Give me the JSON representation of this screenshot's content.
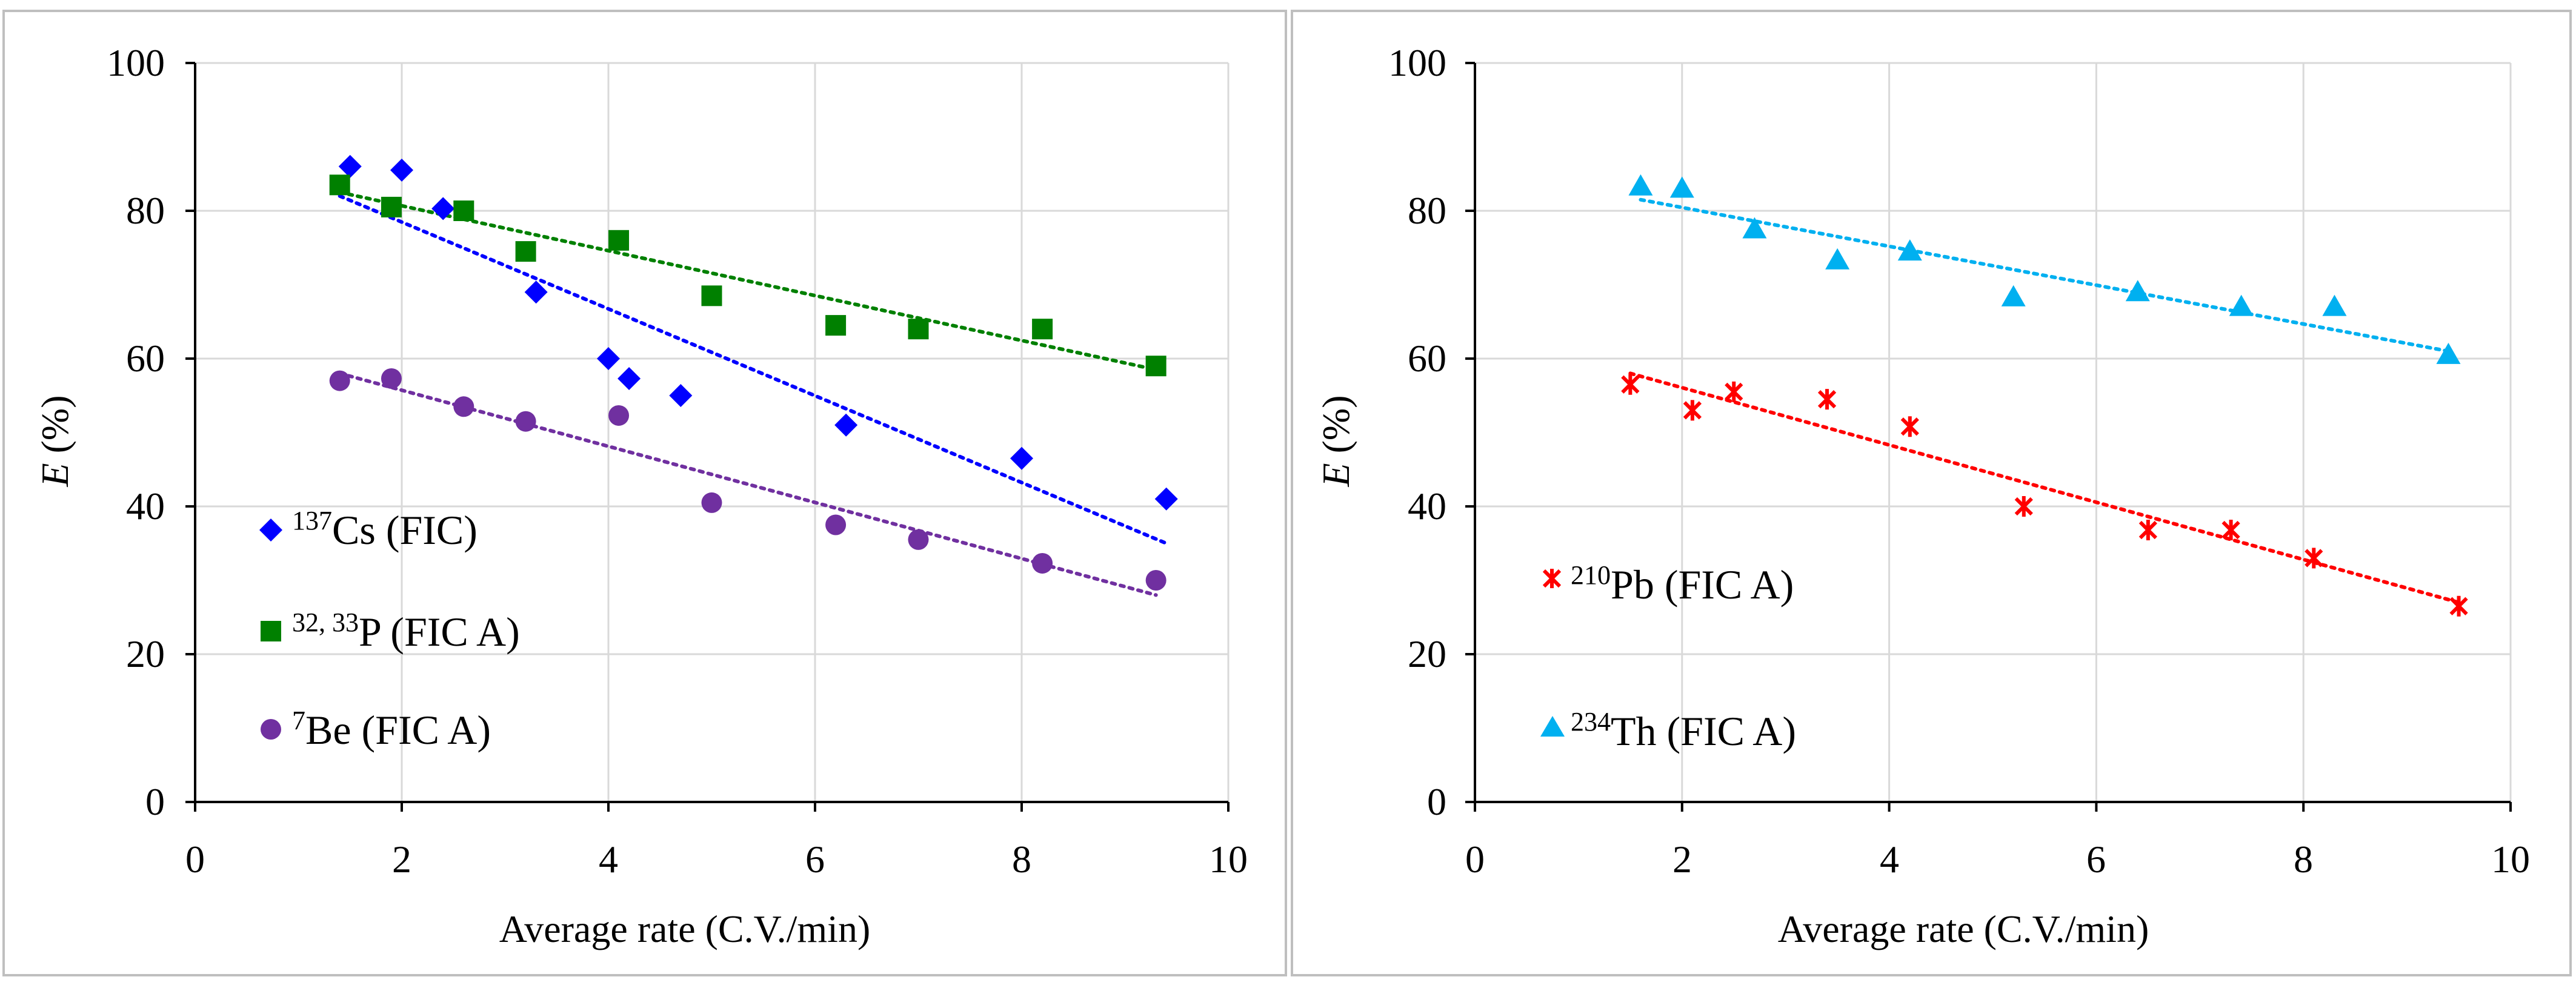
{
  "colors": {
    "cs": "#0000FF",
    "p": "#008000",
    "be": "#7030A0",
    "pb": "#FF0000",
    "th": "#00B0F0",
    "grid": "#D9D9D9",
    "axis": "#000000",
    "frame": "#BFBFBF"
  },
  "chart_data": [
    {
      "type": "scatter",
      "title": "",
      "xlabel": "Average rate (C.V./min)",
      "ylabel": {
        "symbol": "E",
        "rest": " (%)"
      },
      "xlim": [
        0,
        10
      ],
      "ylim": [
        0,
        100
      ],
      "xticks": [
        "0",
        "2",
        "4",
        "6",
        "8",
        "10"
      ],
      "yticks": [
        "0",
        "20",
        "40",
        "60",
        "80",
        "100"
      ],
      "grid": true,
      "legend_position": "left-bottom",
      "series": [
        {
          "key": "cs",
          "marker": "diamond",
          "legend": {
            "sup": "137",
            "name": "Cs (FIC)"
          },
          "x": [
            1.5,
            2.0,
            2.4,
            3.3,
            4.0,
            4.2,
            4.7,
            6.3,
            8.0,
            9.4
          ],
          "y": [
            86,
            85.5,
            80.3,
            69,
            60,
            57.3,
            55,
            51,
            46.5,
            41
          ],
          "trend": {
            "x": [
              1.4,
              9.4
            ],
            "y": [
              82,
              35
            ]
          }
        },
        {
          "key": "p",
          "marker": "square",
          "legend": {
            "sup": "32, 33",
            "name": "P (FIC A)"
          },
          "x": [
            1.4,
            1.9,
            2.6,
            3.2,
            4.1,
            5.0,
            6.2,
            7.0,
            8.2,
            9.3
          ],
          "y": [
            83.5,
            80.5,
            80,
            74.5,
            76,
            68.5,
            64.5,
            64,
            64,
            59
          ],
          "trend": {
            "x": [
              1.4,
              9.3
            ],
            "y": [
              82.5,
              58.5
            ]
          }
        },
        {
          "key": "be",
          "marker": "circle",
          "legend": {
            "sup": "7",
            "name": "Be (FIC A)"
          },
          "x": [
            1.4,
            1.9,
            2.6,
            3.2,
            4.1,
            5.0,
            6.2,
            7.0,
            8.2,
            9.3
          ],
          "y": [
            57,
            57.3,
            53.5,
            51.5,
            52.3,
            40.5,
            37.5,
            35.5,
            32.3,
            30
          ],
          "trend": {
            "x": [
              1.4,
              9.3
            ],
            "y": [
              58,
              28
            ]
          }
        }
      ]
    },
    {
      "type": "scatter",
      "title": "",
      "xlabel": "Average rate (C.V./min)",
      "ylabel": {
        "symbol": "E",
        "rest": " (%)"
      },
      "xlim": [
        0,
        10
      ],
      "ylim": [
        0,
        100
      ],
      "xticks": [
        "0",
        "2",
        "4",
        "6",
        "8",
        "10"
      ],
      "yticks": [
        "0",
        "20",
        "40",
        "60",
        "80",
        "100"
      ],
      "grid": true,
      "legend_position": "left-bottom",
      "series": [
        {
          "key": "pb",
          "marker": "star",
          "legend": {
            "sup": "210",
            "name": "Pb (FIC A)"
          },
          "x": [
            1.5,
            2.1,
            2.5,
            3.4,
            4.2,
            5.3,
            6.5,
            7.3,
            8.1,
            9.5
          ],
          "y": [
            56.5,
            53,
            55.5,
            54.5,
            50.8,
            40,
            36.8,
            36.8,
            33,
            26.5
          ],
          "trend": {
            "x": [
              1.5,
              9.5
            ],
            "y": [
              58,
              27
            ]
          }
        },
        {
          "key": "th",
          "marker": "triangle",
          "legend": {
            "sup": "234",
            "name": "Th (FIC A)"
          },
          "x": [
            1.6,
            2.0,
            2.7,
            3.5,
            4.2,
            5.2,
            6.4,
            7.4,
            8.3,
            9.4
          ],
          "y": [
            83.3,
            83,
            77.5,
            73.3,
            74.5,
            68.3,
            69,
            67,
            67,
            60.5
          ],
          "trend": {
            "x": [
              1.6,
              9.4
            ],
            "y": [
              81.5,
              61
            ]
          }
        }
      ]
    }
  ]
}
